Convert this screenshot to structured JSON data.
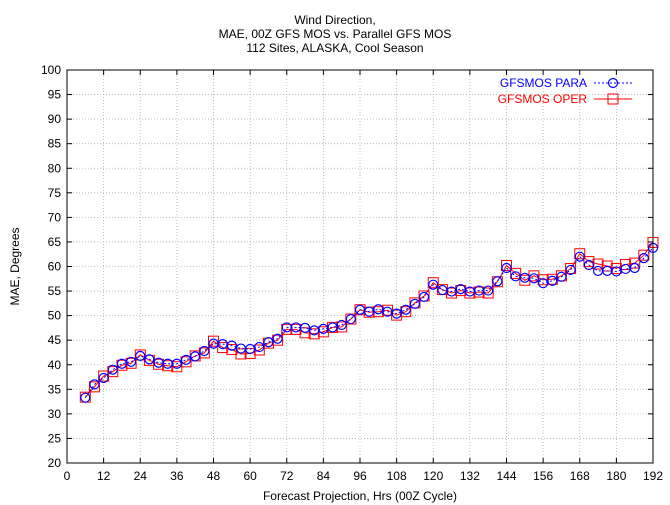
{
  "chart_data": {
    "type": "line",
    "title_lines": [
      "Wind Direction,",
      "MAE, 00Z GFS MOS vs. Parallel GFS MOS",
      "112 Sites, ALASKA, Cool Season"
    ],
    "xlabel": "Forecast Projection, Hrs (00Z Cycle)",
    "ylabel": "MAE, Degrees",
    "xlim": [
      0,
      192
    ],
    "ylim": [
      20,
      100
    ],
    "xticks": [
      0,
      12,
      24,
      36,
      48,
      60,
      72,
      84,
      96,
      108,
      120,
      132,
      144,
      156,
      168,
      180,
      192
    ],
    "yticks": [
      20,
      25,
      30,
      35,
      40,
      45,
      50,
      55,
      60,
      65,
      70,
      75,
      80,
      85,
      90,
      95,
      100
    ],
    "grid": true,
    "legend_position": "top-right",
    "x": [
      6,
      9,
      12,
      15,
      18,
      21,
      24,
      27,
      30,
      33,
      36,
      39,
      42,
      45,
      48,
      51,
      54,
      57,
      60,
      63,
      66,
      69,
      72,
      75,
      78,
      81,
      84,
      87,
      90,
      93,
      96,
      99,
      102,
      105,
      108,
      111,
      114,
      117,
      120,
      123,
      126,
      129,
      132,
      135,
      138,
      141,
      144,
      147,
      150,
      153,
      156,
      159,
      162,
      165,
      168,
      171,
      174,
      177,
      180,
      183,
      186,
      189,
      192
    ],
    "series": [
      {
        "name": "GFSMOS PARA",
        "color": "#0000ff",
        "marker": "circle",
        "line_style": "dotted",
        "values": [
          33.3,
          36.0,
          37.3,
          39.0,
          40.2,
          40.6,
          41.8,
          41.1,
          40.4,
          40.2,
          40.2,
          41.0,
          41.7,
          42.8,
          44.3,
          44.2,
          43.9,
          43.3,
          43.2,
          43.6,
          44.6,
          45.3,
          47.6,
          47.6,
          47.5,
          47.0,
          47.3,
          47.6,
          48.1,
          49.3,
          51.2,
          50.8,
          51.3,
          50.8,
          50.4,
          51.2,
          52.4,
          53.8,
          56.3,
          55.2,
          54.9,
          55.4,
          54.9,
          55.1,
          55.1,
          57.0,
          59.7,
          58.0,
          57.7,
          57.6,
          56.6,
          57.1,
          57.9,
          59.3,
          62.0,
          60.3,
          59.1,
          59.1,
          59.0,
          59.5,
          59.7,
          61.7,
          63.8
        ]
      },
      {
        "name": "GFSMOS OPER",
        "color": "#ff0000",
        "marker": "square",
        "line_style": "solid",
        "values": [
          33.4,
          35.5,
          37.7,
          38.6,
          39.9,
          40.3,
          42.0,
          40.9,
          40.1,
          39.8,
          39.6,
          40.6,
          41.8,
          42.4,
          44.8,
          43.5,
          43.1,
          42.2,
          42.3,
          43.0,
          44.4,
          45.0,
          47.2,
          47.2,
          46.5,
          46.3,
          46.7,
          47.6,
          47.7,
          49.3,
          51.2,
          50.7,
          50.8,
          51.1,
          50.1,
          50.8,
          52.6,
          54.0,
          56.7,
          55.3,
          54.6,
          55.1,
          54.6,
          54.8,
          54.6,
          56.9,
          60.2,
          58.6,
          57.2,
          58.1,
          57.3,
          57.4,
          58.1,
          59.6,
          62.6,
          61.0,
          60.5,
          60.1,
          59.6,
          60.4,
          60.7,
          62.3,
          64.9
        ]
      }
    ]
  }
}
